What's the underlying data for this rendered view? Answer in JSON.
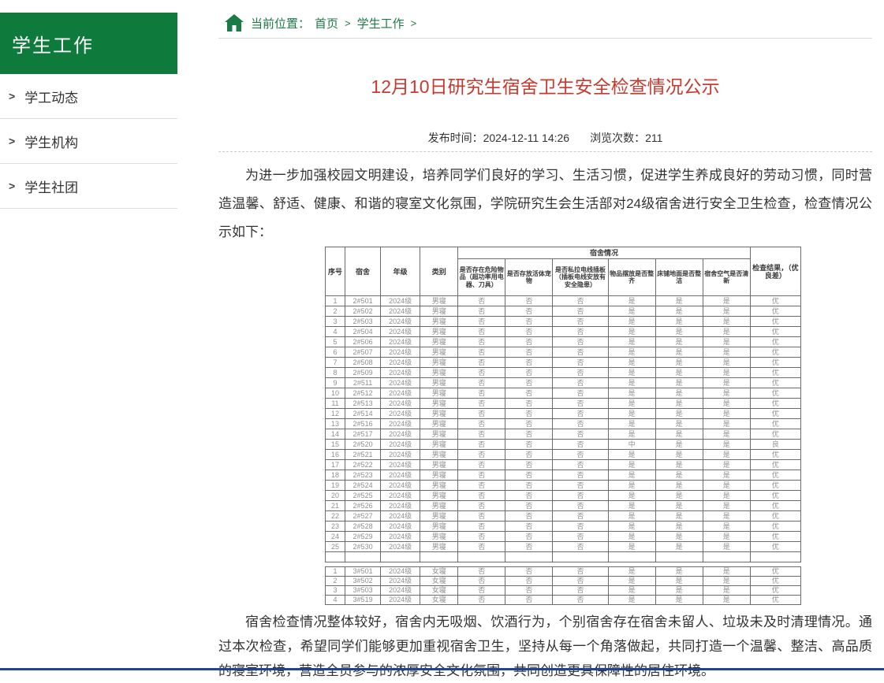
{
  "page": {
    "accent_green": "#0e7a3c",
    "title_red": "#c43b2f",
    "footer_blue": "#1e4690"
  },
  "sidebar": {
    "title": "学生工作",
    "item_prefix": ">",
    "items": [
      {
        "label": "学工动态"
      },
      {
        "label": "学生机构"
      },
      {
        "label": "学生社团"
      }
    ]
  },
  "breadcrumb": {
    "label": "当前位置：",
    "links": [
      {
        "text": "首页"
      },
      {
        "text": "学生工作"
      }
    ],
    "separator": ">"
  },
  "article": {
    "title": "12月10日研究生宿舍卫生安全检查情况公示",
    "publish_label": "发布时间：",
    "publish_time": "2024-12-11 14:26",
    "views_label": "浏览次数：",
    "views": "211",
    "intro": "为进一步加强校园文明建设，培养同学们良好的学习、生活习惯，促进学生养成良好的劳动习惯，同时营造温馨、舒适、健康、和谐的寝室文化氛围，学院研究生会生活部对24级宿舍进行安全卫生检查，检查情况公示如下：",
    "conclusion": "宿舍检查情况整体较好，宿舍内无吸烟、饮酒行为，个别宿舍存在宿舍未留人、垃圾未及时清理情况。通过本次检查，希望同学们能够更加重视宿舍卫生，坚持从每一个角落做起，共同打造一个温馨、整洁、高品质的寝室环境，营造全员参与的浓厚安全文化氛围，共同创造更具保障性的居住环境。"
  },
  "table": {
    "header": {
      "fixed_cols": [
        "序号",
        "宿舍",
        "年级",
        "类别"
      ],
      "group": "宿舍情况",
      "sub_cols": [
        "是否存在危险物品（超功率用电器、刀具）",
        "是否存放活体宠物",
        "是否私拉电线插板（插板电线安放有安全隐患）",
        "物品摆放是否整齐",
        "床铺地面是否整洁",
        "宿舍空气是否清新"
      ],
      "result_col": "检查结果，（优良差）"
    },
    "sections": [
      {
        "rows": [
          [
            "1",
            "2#501",
            "2024级",
            "男寝",
            "否",
            "否",
            "否",
            "是",
            "是",
            "是",
            "优"
          ],
          [
            "2",
            "2#502",
            "2024级",
            "男寝",
            "否",
            "否",
            "否",
            "是",
            "是",
            "是",
            "优"
          ],
          [
            "3",
            "2#503",
            "2024级",
            "男寝",
            "否",
            "否",
            "否",
            "是",
            "是",
            "是",
            "优"
          ],
          [
            "4",
            "2#504",
            "2024级",
            "男寝",
            "否",
            "否",
            "否",
            "是",
            "是",
            "是",
            "优"
          ],
          [
            "5",
            "2#506",
            "2024级",
            "男寝",
            "否",
            "否",
            "否",
            "是",
            "是",
            "是",
            "优"
          ],
          [
            "6",
            "2#507",
            "2024级",
            "男寝",
            "否",
            "否",
            "否",
            "是",
            "是",
            "是",
            "优"
          ],
          [
            "7",
            "2#508",
            "2024级",
            "男寝",
            "否",
            "否",
            "否",
            "是",
            "是",
            "是",
            "优"
          ],
          [
            "8",
            "2#509",
            "2024级",
            "男寝",
            "否",
            "否",
            "否",
            "是",
            "是",
            "是",
            "优"
          ],
          [
            "9",
            "2#511",
            "2024级",
            "男寝",
            "否",
            "否",
            "否",
            "是",
            "是",
            "是",
            "优"
          ],
          [
            "10",
            "2#512",
            "2024级",
            "男寝",
            "否",
            "否",
            "否",
            "是",
            "是",
            "是",
            "优"
          ],
          [
            "11",
            "2#513",
            "2024级",
            "男寝",
            "否",
            "否",
            "否",
            "是",
            "是",
            "是",
            "优"
          ],
          [
            "12",
            "2#514",
            "2024级",
            "男寝",
            "否",
            "否",
            "否",
            "是",
            "是",
            "是",
            "优"
          ],
          [
            "13",
            "2#516",
            "2024级",
            "男寝",
            "否",
            "否",
            "否",
            "是",
            "是",
            "是",
            "优"
          ],
          [
            "14",
            "2#517",
            "2024级",
            "男寝",
            "否",
            "否",
            "否",
            "是",
            "是",
            "是",
            "优"
          ],
          [
            "15",
            "2#520",
            "2024级",
            "男寝",
            "否",
            "否",
            "否",
            "中",
            "是",
            "是",
            "良"
          ],
          [
            "16",
            "2#521",
            "2024级",
            "男寝",
            "否",
            "否",
            "否",
            "是",
            "是",
            "是",
            "优"
          ],
          [
            "17",
            "2#522",
            "2024级",
            "男寝",
            "否",
            "否",
            "否",
            "是",
            "是",
            "是",
            "优"
          ],
          [
            "18",
            "2#523",
            "2024级",
            "男寝",
            "否",
            "否",
            "否",
            "是",
            "是",
            "是",
            "优"
          ],
          [
            "19",
            "2#524",
            "2024级",
            "男寝",
            "否",
            "否",
            "否",
            "是",
            "是",
            "是",
            "优"
          ],
          [
            "20",
            "2#525",
            "2024级",
            "男寝",
            "否",
            "否",
            "否",
            "是",
            "是",
            "是",
            "优"
          ],
          [
            "21",
            "2#526",
            "2024级",
            "男寝",
            "否",
            "否",
            "否",
            "是",
            "是",
            "是",
            "优"
          ],
          [
            "22",
            "2#527",
            "2024级",
            "男寝",
            "否",
            "否",
            "否",
            "是",
            "是",
            "是",
            "优"
          ],
          [
            "23",
            "2#528",
            "2024级",
            "男寝",
            "否",
            "否",
            "否",
            "是",
            "是",
            "是",
            "优"
          ],
          [
            "24",
            "2#529",
            "2024级",
            "男寝",
            "否",
            "否",
            "否",
            "是",
            "是",
            "是",
            "优"
          ],
          [
            "25",
            "2#530",
            "2024级",
            "男寝",
            "否",
            "否",
            "否",
            "是",
            "是",
            "是",
            "优"
          ],
          [
            "",
            "",
            "",
            "",
            "",
            "",
            "",
            "",
            "",
            "",
            ""
          ]
        ]
      },
      {
        "rows": [
          [
            "1",
            "3#501",
            "2024级",
            "女寝",
            "否",
            "否",
            "否",
            "是",
            "是",
            "是",
            "优"
          ],
          [
            "2",
            "3#502",
            "2024级",
            "女寝",
            "否",
            "否",
            "否",
            "是",
            "是",
            "是",
            "优"
          ],
          [
            "3",
            "3#503",
            "2024级",
            "女寝",
            "否",
            "否",
            "否",
            "是",
            "是",
            "是",
            "优"
          ],
          [
            "4",
            "3#519",
            "2024级",
            "女寝",
            "否",
            "否",
            "否",
            "是",
            "是",
            "是",
            "优"
          ]
        ]
      }
    ]
  }
}
